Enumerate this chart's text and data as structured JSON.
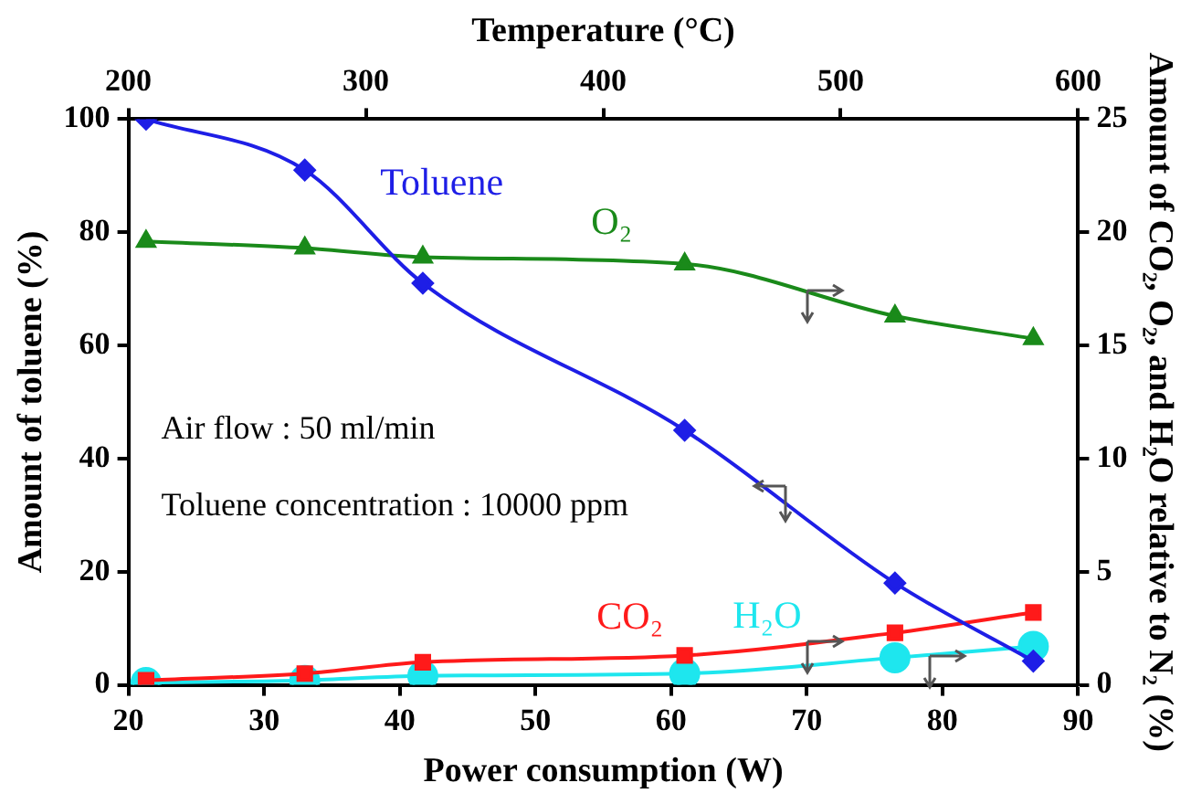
{
  "chart_data": {
    "type": "line",
    "xlabel": "Power consumption (W)",
    "ylabel": "Amount of toluene (%)",
    "y2label": "Amount of CO₂, O₂, and H₂O relative to N₂ (%)",
    "x2label": "Temperature (°C)",
    "x": [
      21.3,
      33,
      41.7,
      61,
      76.5,
      86.7
    ],
    "series": [
      {
        "name": "Toluene",
        "color": "#1e1ee6",
        "marker": "diamond",
        "values": [
          100,
          91,
          71,
          45,
          18,
          4.2
        ]
      },
      {
        "name": "O₂",
        "color": "#1a8a1a",
        "marker": "triangle",
        "axis": "y2",
        "values": [
          19.6,
          19.3,
          18.9,
          18.6,
          16.3,
          15.3
        ]
      },
      {
        "name": "CO₂",
        "color": "#ff1a1a",
        "marker": "square",
        "axis": "y2",
        "values": [
          0.2,
          0.5,
          1,
          1.3,
          2.3,
          3.2
        ]
      },
      {
        "name": "H₂O",
        "color": "#1ee6ee",
        "marker": "circle",
        "axis": "y2",
        "values": [
          0.1,
          0.2,
          0.4,
          0.5,
          1.2,
          1.7
        ]
      }
    ],
    "xlim": [
      20,
      90
    ],
    "xticks": [
      20,
      30,
      40,
      50,
      60,
      70,
      80,
      90
    ],
    "x2lim": [
      200,
      600
    ],
    "x2ticks": [
      200,
      300,
      400,
      500,
      600
    ],
    "ylim": [
      0,
      100
    ],
    "yticks": [
      0,
      20,
      40,
      60,
      80,
      100
    ],
    "y2lim": [
      0,
      25
    ],
    "y2ticks": [
      0,
      5,
      10,
      15,
      20,
      25
    ],
    "annotations": [
      "Air flow : 50 ml/min",
      "Toluene concentration : 10000 ppm"
    ],
    "grid": false,
    "legend": false
  }
}
